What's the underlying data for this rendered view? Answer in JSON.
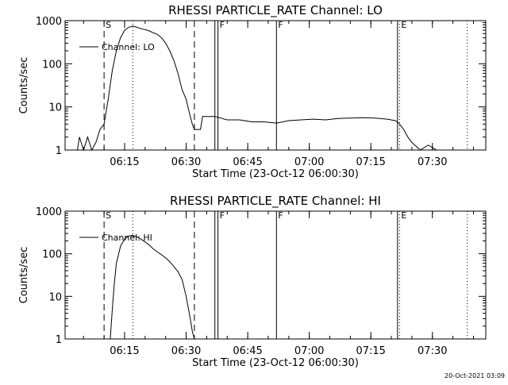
{
  "footer": {
    "timestamp": "20-Oct-2021 03:09"
  },
  "chart_data": [
    {
      "type": "line",
      "title": "RHESSI PARTICLE_RATE Channel: LO",
      "xlabel": "Start Time (23-Oct-12 06:00:30)",
      "ylabel": "Counts/sec",
      "ylog": true,
      "xlim": [
        "06:00:30",
        "07:43:00"
      ],
      "ylim": [
        1,
        1000
      ],
      "x_ticks": [
        "06:15",
        "06:30",
        "06:45",
        "07:00",
        "07:15",
        "07:30"
      ],
      "y_ticks": [
        "1",
        "10",
        "100",
        "1000"
      ],
      "legend": {
        "position": "upper-left",
        "entries": [
          "Channel: LO"
        ]
      },
      "markers": [
        {
          "time": "06:10:00",
          "style": "dashed",
          "label": "S"
        },
        {
          "time": "06:17:00",
          "style": "dotted",
          "label": ""
        },
        {
          "time": "06:32:00",
          "style": "dashed",
          "label": ""
        },
        {
          "time": "06:37:00",
          "style": "solid",
          "label": ""
        },
        {
          "time": "06:37:45",
          "style": "solid",
          "label": "F"
        },
        {
          "time": "06:52:00",
          "style": "solid",
          "label": "F"
        },
        {
          "time": "07:21:30",
          "style": "solid",
          "label": ""
        },
        {
          "time": "07:22:00",
          "style": "dotted",
          "label": "E"
        },
        {
          "time": "07:38:30",
          "style": "dotted",
          "label": ""
        }
      ],
      "series": [
        {
          "x": [
            "06:03:30",
            "06:04:00",
            "06:05:00",
            "06:06:00",
            "06:07:00",
            "06:08:00",
            "06:09:00",
            "06:10:00",
            "06:11:00",
            "06:12:00",
            "06:13:00",
            "06:14:00",
            "06:15:00",
            "06:16:00",
            "06:17:00",
            "06:18:00",
            "06:19:00",
            "06:20:00",
            "06:21:00",
            "06:22:00",
            "06:23:00",
            "06:24:00",
            "06:25:00",
            "06:26:00",
            "06:27:00",
            "06:28:00",
            "06:29:00",
            "06:30:00",
            "06:31:00",
            "06:31:30",
            "06:32:00",
            "06:33:00",
            "06:33:30",
            "06:34:00",
            "06:37:00",
            "06:40:00",
            "06:43:00",
            "06:46:00",
            "06:49:00",
            "06:52:00",
            "06:55:00",
            "06:58:00",
            "07:01:00",
            "07:04:00",
            "07:07:00",
            "07:10:00",
            "07:13:00",
            "07:16:00",
            "07:19:00",
            "07:21:00",
            "07:22:00",
            "07:23:00",
            "07:24:00",
            "07:25:00",
            "07:27:00",
            "07:29:00",
            "07:31:00"
          ],
          "y": [
            1,
            2,
            1,
            2,
            1,
            1.5,
            3,
            4,
            15,
            70,
            200,
            400,
            600,
            700,
            750,
            700,
            650,
            620,
            580,
            520,
            480,
            400,
            300,
            200,
            120,
            60,
            25,
            15,
            6,
            4,
            3,
            3,
            3,
            6,
            6,
            5,
            5,
            4.5,
            4.5,
            4.2,
            4.8,
            5,
            5.2,
            5,
            5.4,
            5.5,
            5.6,
            5.5,
            5.2,
            4.8,
            4,
            3,
            2,
            1.5,
            1,
            1.3,
            1
          ]
        }
      ]
    },
    {
      "type": "line",
      "title": "RHESSI PARTICLE_RATE Channel: HI",
      "xlabel": "Start Time (23-Oct-12 06:00:30)",
      "ylabel": "Counts/sec",
      "ylog": true,
      "xlim": [
        "06:00:30",
        "07:43:00"
      ],
      "ylim": [
        1,
        1000
      ],
      "x_ticks": [
        "06:15",
        "06:30",
        "06:45",
        "07:00",
        "07:15",
        "07:30"
      ],
      "y_ticks": [
        "1",
        "10",
        "100",
        "1000"
      ],
      "legend": {
        "position": "upper-left",
        "entries": [
          "Channel: HI"
        ]
      },
      "markers": [
        {
          "time": "06:10:00",
          "style": "dashed",
          "label": "S"
        },
        {
          "time": "06:17:00",
          "style": "dotted",
          "label": ""
        },
        {
          "time": "06:32:00",
          "style": "dashed",
          "label": ""
        },
        {
          "time": "06:37:00",
          "style": "solid",
          "label": ""
        },
        {
          "time": "06:37:45",
          "style": "solid",
          "label": "F"
        },
        {
          "time": "06:52:00",
          "style": "solid",
          "label": "F"
        },
        {
          "time": "07:21:30",
          "style": "solid",
          "label": ""
        },
        {
          "time": "07:22:00",
          "style": "dotted",
          "label": "E"
        },
        {
          "time": "07:38:30",
          "style": "dotted",
          "label": ""
        }
      ],
      "series": [
        {
          "x": [
            "06:11:30",
            "06:12:00",
            "06:12:30",
            "06:13:00",
            "06:14:00",
            "06:15:00",
            "06:16:00",
            "06:17:00",
            "06:18:00",
            "06:19:00",
            "06:20:00",
            "06:21:00",
            "06:22:00",
            "06:23:00",
            "06:24:00",
            "06:25:00",
            "06:26:00",
            "06:27:00",
            "06:28:00",
            "06:29:00",
            "06:30:00",
            "06:31:00",
            "06:31:30",
            "06:32:00"
          ],
          "y": [
            1,
            5,
            20,
            60,
            150,
            220,
            260,
            270,
            250,
            220,
            190,
            160,
            130,
            110,
            95,
            80,
            65,
            50,
            38,
            25,
            10,
            3,
            1.5,
            1
          ]
        }
      ]
    }
  ]
}
